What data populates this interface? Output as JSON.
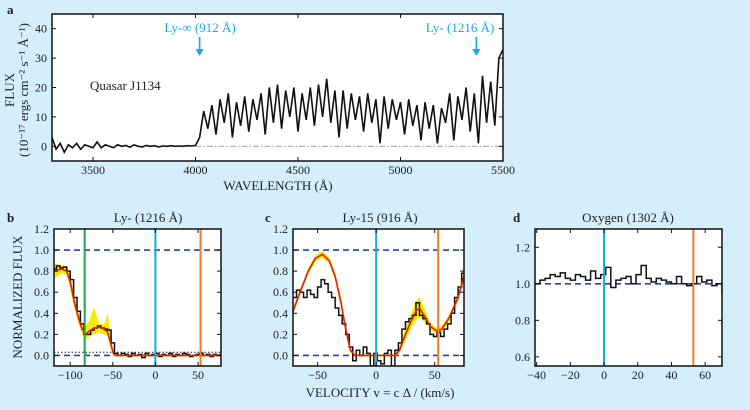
{
  "colors": {
    "background": "#d4eefb",
    "cyan": "#16a9e6",
    "orange": "#f47a20",
    "green": "#1aa84a",
    "dashed_blue": "#2b3fa8",
    "model_red": "#e0201c",
    "band_yellow": "#f5ec00",
    "data_black": "#111111",
    "zero_line_gray": "#aaaaaa"
  },
  "chart_data": [
    {
      "panel": "a",
      "type": "line",
      "annotation": "Quasar J1134",
      "xlabel": "WAVELENGTH    (Å)",
      "ylabel": [
        "FLUX",
        "(10⁻¹⁷ ergs cm⁻² s⁻¹ Å⁻¹)"
      ],
      "xlim": [
        3300,
        5500
      ],
      "ylim": [
        -5,
        45
      ],
      "xticks": [
        3500,
        4000,
        4500,
        5000,
        5500
      ],
      "yticks": [
        0,
        10,
        20,
        30,
        40
      ],
      "markers": [
        {
          "label": "Ly-∞ (912 Å)",
          "x": 4020
        },
        {
          "label": "Ly-   (1216 Å)",
          "x": 5370
        }
      ],
      "reference_line_y": 0,
      "x_start": 3300,
      "x_step": 20,
      "values": [
        3,
        -1,
        1,
        -2,
        0.5,
        -0.5,
        1,
        -1,
        0.5,
        0,
        -0.5,
        1.5,
        -0.5,
        0.5,
        0,
        -0.5,
        0.5,
        0,
        0.3,
        -0.3,
        0.5,
        0,
        -0.2,
        0.3,
        0,
        0.2,
        -0.2,
        0.1,
        0,
        0.2,
        0,
        0.1,
        0,
        0.2,
        0.1,
        0.3,
        3,
        12,
        6,
        14,
        4,
        16,
        8,
        18,
        3,
        15,
        7,
        17,
        5,
        16,
        9,
        18,
        4,
        20,
        8,
        21,
        6,
        19,
        10,
        20,
        5,
        18,
        9,
        20,
        7,
        21,
        10,
        23,
        8,
        19,
        3,
        19,
        6,
        18,
        9,
        17,
        5,
        18,
        8,
        16,
        1,
        17,
        6,
        16,
        9,
        15,
        4,
        16,
        7,
        14,
        2,
        15,
        6,
        14,
        1,
        13,
        8,
        18,
        2,
        17,
        9,
        20,
        5,
        18,
        1,
        24,
        8,
        22,
        7,
        30,
        33
      ]
    },
    {
      "panel": "b",
      "type": "step",
      "title": "Ly-   (1216 Å)",
      "ylabel": "NORMALIZED FLUX",
      "xlim": [
        -119,
        77
      ],
      "ylim": [
        -0.1,
        1.2
      ],
      "xticks": [
        -100,
        -50,
        0,
        50
      ],
      "yticks": [
        0.0,
        0.2,
        0.4,
        0.6,
        0.8,
        1.0,
        1.2
      ],
      "dashed_lines_y": [
        0.0,
        1.0
      ],
      "dotted_line_y": 0.03,
      "vertical_lines": [
        {
          "x": -83,
          "color": "green"
        },
        {
          "x": 0,
          "color": "cyan"
        },
        {
          "x": 53,
          "color": "orange"
        }
      ],
      "x_start": -120,
      "x_step": 4,
      "values": [
        0.82,
        0.85,
        0.83,
        0.84,
        0.8,
        0.72,
        0.55,
        0.42,
        0.3,
        0.2,
        0.2,
        0.24,
        0.26,
        0.28,
        0.26,
        0.25,
        0.24,
        0.12,
        0.02,
        0.0,
        0.02,
        0.01,
        -0.01,
        0.02,
        0.0,
        0.01,
        -0.02,
        0.02,
        0.0,
        0.01,
        0.02,
        -0.01,
        0.01,
        0.0,
        0.02,
        -0.01,
        0.01,
        0.0,
        0.02,
        0.01,
        -0.01,
        0.0,
        0.01,
        0.02,
        0.0,
        0.01,
        -0.01,
        0.01,
        0.0,
        0.01
      ],
      "model": {
        "x": [
          -120,
          -110,
          -104,
          -100,
          -95,
          -90,
          -86,
          -82,
          -78,
          -72,
          -66,
          -60,
          -56,
          -52,
          -49,
          -45,
          77
        ],
        "y": [
          0.8,
          0.82,
          0.8,
          0.7,
          0.5,
          0.35,
          0.25,
          0.2,
          0.23,
          0.26,
          0.27,
          0.25,
          0.22,
          0.1,
          0.01,
          0.0,
          0.0
        ],
        "band_upper": [
          0.87,
          0.86,
          0.84,
          0.76,
          0.56,
          0.4,
          0.31,
          0.28,
          0.32,
          0.46,
          0.3,
          0.3,
          0.4,
          0.16,
          0.03,
          0.01,
          0.01
        ],
        "band_lower": [
          0.72,
          0.78,
          0.76,
          0.64,
          0.44,
          0.3,
          0.2,
          0.15,
          0.18,
          0.2,
          0.22,
          0.2,
          0.18,
          0.05,
          0.0,
          -0.01,
          -0.01
        ]
      }
    },
    {
      "panel": "c",
      "type": "step",
      "title": "Ly-15 (916 Å)",
      "xlabel": "VELOCITY v = c Δ   /    (km/s)",
      "xlim": [
        -71,
        75
      ],
      "ylim": [
        -0.1,
        1.2
      ],
      "xticks": [
        -50,
        0,
        50
      ],
      "yticks": [
        0.0,
        0.2,
        0.4,
        0.6,
        0.8,
        1.0,
        1.2
      ],
      "dashed_lines_y": [
        0.0,
        1.0
      ],
      "vertical_lines": [
        {
          "x": 0,
          "color": "cyan"
        },
        {
          "x": 53,
          "color": "orange"
        }
      ],
      "x_start": -71,
      "x_step": 3,
      "values": [
        0.55,
        0.62,
        0.6,
        0.55,
        0.62,
        0.58,
        0.55,
        0.65,
        0.72,
        0.68,
        0.6,
        0.55,
        0.45,
        0.38,
        0.3,
        0.2,
        0.08,
        -0.05,
        0.05,
        0.0,
        0.08,
        0.02,
        -0.1,
        0.02,
        -0.05,
        -0.08,
        0.02,
        0.05,
        -0.1,
        0.05,
        0.12,
        0.25,
        0.32,
        0.35,
        0.38,
        0.5,
        0.38,
        0.35,
        0.3,
        0.2,
        0.18,
        0.22,
        0.18,
        0.25,
        0.3,
        0.4,
        0.55,
        0.65,
        0.78,
        0.8
      ],
      "model": {
        "x": [
          -71,
          -65,
          -58,
          -52,
          -46,
          -40,
          -35,
          -30,
          -26,
          -22,
          -18,
          16,
          20,
          25,
          30,
          34,
          37,
          41,
          46,
          52,
          56,
          62,
          70,
          75
        ],
        "y": [
          0.42,
          0.6,
          0.8,
          0.92,
          0.96,
          0.9,
          0.75,
          0.5,
          0.25,
          0.05,
          0.0,
          0.0,
          0.05,
          0.2,
          0.33,
          0.42,
          0.45,
          0.38,
          0.28,
          0.23,
          0.25,
          0.35,
          0.55,
          0.75
        ],
        "band_upper": [
          0.45,
          0.63,
          0.83,
          0.95,
          0.99,
          0.93,
          0.79,
          0.55,
          0.3,
          0.08,
          0.01,
          0.01,
          0.08,
          0.26,
          0.4,
          0.52,
          0.55,
          0.46,
          0.31,
          0.26,
          0.28,
          0.38,
          0.58,
          0.8
        ],
        "band_lower": [
          0.39,
          0.57,
          0.77,
          0.89,
          0.93,
          0.87,
          0.71,
          0.45,
          0.2,
          0.02,
          -0.01,
          -0.01,
          0.02,
          0.14,
          0.26,
          0.33,
          0.36,
          0.32,
          0.25,
          0.2,
          0.22,
          0.32,
          0.52,
          0.7
        ]
      }
    },
    {
      "panel": "d",
      "type": "step",
      "title": "Oxygen (1302 Å)",
      "xlim": [
        -41,
        70
      ],
      "ylim": [
        0.55,
        1.3
      ],
      "xticks": [
        -40,
        -20,
        0,
        20,
        40,
        60
      ],
      "yticks": [
        0.6,
        0.8,
        1.0,
        1.2
      ],
      "dashed_lines_y": [
        1.0
      ],
      "vertical_lines": [
        {
          "x": 0,
          "color": "cyan"
        },
        {
          "x": 53,
          "color": "orange"
        }
      ],
      "x_start": -41,
      "x_step": 3,
      "values": [
        1.0,
        1.02,
        1.03,
        1.05,
        1.04,
        1.06,
        1.03,
        1.02,
        1.05,
        1.04,
        1.02,
        1.07,
        1.03,
        1.05,
        1.09,
        0.98,
        1.02,
        1.03,
        1.04,
        1.0,
        1.05,
        1.1,
        1.03,
        1.01,
        1.03,
        1.02,
        1.01,
        1.0,
        1.04,
        1.0,
        0.99,
        1.0,
        1.04,
        1.01,
        1.02,
        0.99,
        1.0,
        0.95,
        0.98,
        1.06
      ]
    }
  ],
  "panel_letters": [
    "a",
    "b",
    "c",
    "d"
  ]
}
